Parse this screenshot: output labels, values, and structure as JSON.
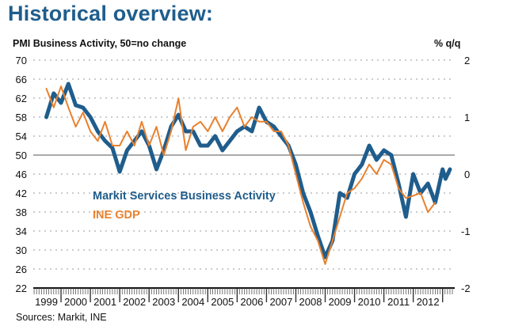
{
  "title": "Historical overview:",
  "source": "Sources: Markit, INE",
  "chart_data": {
    "type": "line",
    "title": "Historical overview:",
    "ylabel": "PMI Business Activity, 50=no change",
    "ylabel_right": "% q/q",
    "xlabel": "",
    "ylim": [
      22,
      70
    ],
    "ylim_right": [
      -2,
      2
    ],
    "yticks": [
      70,
      66,
      62,
      58,
      54,
      50,
      46,
      42,
      38,
      34,
      30,
      26,
      22
    ],
    "yticks_right": [
      2,
      1,
      0,
      -1,
      -2
    ],
    "xlim": [
      1999,
      2013.4
    ],
    "xticks": [
      "1999",
      "2000",
      "2001",
      "2002",
      "2003",
      "2004",
      "2005",
      "2006",
      "2007",
      "2008",
      "2009",
      "2010",
      "2011",
      "2012"
    ],
    "reference_line": 50,
    "grid": "dotted-horizontal",
    "series": [
      {
        "name": "Markit Services Business Activity",
        "axis": "left",
        "color": "#1f5d8c",
        "x": [
          1999.5,
          1999.75,
          2000.0,
          2000.25,
          2000.5,
          2000.75,
          2001.0,
          2001.25,
          2001.5,
          2001.75,
          2002.0,
          2002.25,
          2002.5,
          2002.75,
          2003.0,
          2003.25,
          2003.5,
          2003.75,
          2004.0,
          2004.25,
          2004.5,
          2004.75,
          2005.0,
          2005.25,
          2005.5,
          2005.75,
          2006.0,
          2006.25,
          2006.5,
          2006.75,
          2007.0,
          2007.25,
          2007.5,
          2007.75,
          2008.0,
          2008.25,
          2008.5,
          2008.75,
          2009.0,
          2009.25,
          2009.5,
          2009.75,
          2010.0,
          2010.25,
          2010.5,
          2010.75,
          2011.0,
          2011.25,
          2011.5,
          2011.75,
          2012.0,
          2012.25,
          2012.5,
          2012.75,
          2013.0,
          2013.1,
          2013.25
        ],
        "values": [
          58,
          63,
          61,
          65,
          60.5,
          60,
          58,
          55,
          53,
          51.5,
          46.5,
          51,
          53,
          55,
          52,
          47,
          51,
          56,
          58.5,
          55,
          55,
          52,
          52,
          54,
          51,
          53,
          55,
          56,
          55,
          60,
          57,
          56,
          54,
          52,
          48,
          42,
          38,
          33,
          28.5,
          32,
          42,
          41,
          46,
          48,
          52,
          49,
          51,
          50,
          44,
          37,
          46,
          42,
          44,
          40,
          47,
          45,
          47
        ]
      },
      {
        "name": "INE GDP",
        "axis": "right",
        "color": "#e8812e",
        "x": [
          1999.5,
          1999.75,
          2000.0,
          2000.25,
          2000.5,
          2000.75,
          2001.0,
          2001.25,
          2001.5,
          2001.75,
          2002.0,
          2002.25,
          2002.5,
          2002.75,
          2003.0,
          2003.25,
          2003.5,
          2003.75,
          2004.0,
          2004.25,
          2004.5,
          2004.75,
          2005.0,
          2005.25,
          2005.5,
          2005.75,
          2006.0,
          2006.25,
          2006.5,
          2006.75,
          2007.0,
          2007.25,
          2007.5,
          2007.75,
          2008.0,
          2008.25,
          2008.5,
          2008.75,
          2009.0,
          2009.25,
          2009.5,
          2009.75,
          2010.0,
          2010.25,
          2010.5,
          2010.75,
          2011.0,
          2011.25,
          2011.5,
          2011.75,
          2012.0,
          2012.25,
          2012.5,
          2012.75
        ],
        "values": [
          1.5,
          1.17,
          1.54,
          1.17,
          0.83,
          1.08,
          0.75,
          0.58,
          0.92,
          0.5,
          0.5,
          0.75,
          0.5,
          0.92,
          0.5,
          0.83,
          0.33,
          0.75,
          1.33,
          0.42,
          0.83,
          0.92,
          0.75,
          1.0,
          0.75,
          1.0,
          1.17,
          0.83,
          1.0,
          0.92,
          0.92,
          0.75,
          0.75,
          0.5,
          0.0,
          -0.5,
          -0.92,
          -1.17,
          -1.58,
          -1.17,
          -0.75,
          -0.33,
          -0.25,
          -0.08,
          0.17,
          0.0,
          0.25,
          0.17,
          -0.25,
          -0.42,
          -0.38,
          -0.33,
          -0.67,
          -0.5
        ]
      }
    ]
  }
}
